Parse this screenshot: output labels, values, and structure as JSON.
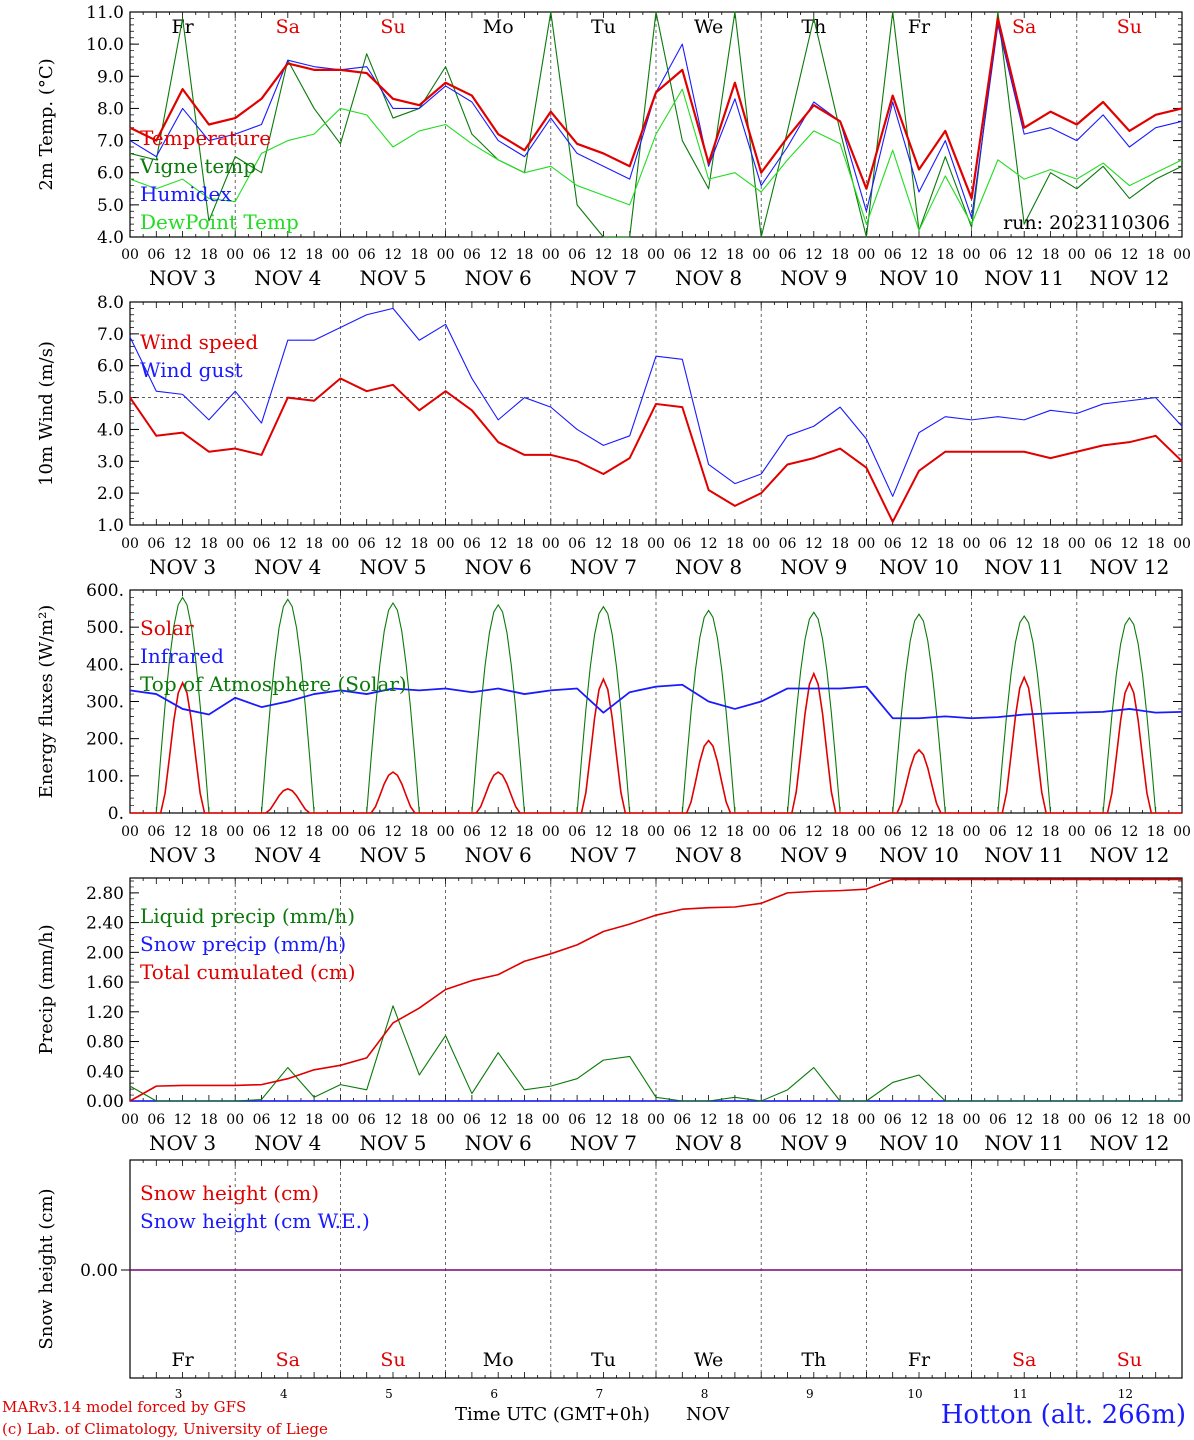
{
  "footer": {
    "model_line": "MARv3.14 model forced by GFS",
    "credit_line": "(c) Lab. of Climatology, University of Liege",
    "time_label": "Time UTC (GMT+0h)",
    "month_label": "NOV",
    "station": "Hotton (alt. 266m)"
  },
  "colors": {
    "red": "#e00000",
    "green": "#0a7a0a",
    "blue": "#1a1aff",
    "lightgreen": "#22dd22",
    "purple": "#7a007a"
  },
  "chart_data": [
    {
      "type": "line",
      "ylabel": "2m Temp. (°C)",
      "ylim": [
        4.0,
        11.0
      ],
      "yticks": [
        "4.0",
        "5.0",
        "6.0",
        "7.0",
        "8.0",
        "9.0",
        "10.0",
        "11.0"
      ],
      "run_label": "run: 2023110306",
      "hour_ticks": [
        "00",
        "06",
        "12",
        "18"
      ],
      "day_labels": [
        "NOV 3",
        "NOV 4",
        "NOV 5",
        "NOV 6",
        "NOV 7",
        "NOV 8",
        "NOV 9",
        "NOV 10",
        "NOV 11",
        "NOV 12"
      ],
      "weekdays": [
        "Fr",
        "Sa",
        "Su",
        "Mo",
        "Tu",
        "We",
        "Th",
        "Fr",
        "Sa",
        "Su"
      ],
      "x_hours": [
        0,
        6,
        12,
        18,
        24,
        30,
        36,
        42,
        48,
        54,
        60,
        66,
        72,
        78,
        84,
        90,
        96,
        102,
        108,
        114,
        120,
        126,
        132,
        138,
        144,
        150,
        156,
        162,
        168,
        174,
        180,
        186,
        192,
        198,
        204,
        210,
        216,
        222,
        228,
        234,
        240
      ],
      "series": [
        {
          "name": "Temperature",
          "color": "red",
          "values": [
            7.4,
            7.0,
            8.6,
            7.5,
            7.7,
            8.3,
            9.4,
            9.2,
            9.2,
            9.1,
            8.3,
            8.1,
            8.8,
            8.4,
            7.2,
            6.7,
            7.9,
            6.9,
            6.6,
            6.2,
            8.5,
            9.2,
            6.3,
            8.8,
            6.0,
            7.1,
            8.1,
            7.6,
            5.5,
            8.4,
            6.1,
            7.3,
            5.2,
            10.8,
            7.4,
            7.9,
            7.5,
            8.2,
            7.3,
            7.8,
            8.0
          ]
        },
        {
          "name": "Vigne temp",
          "color": "green",
          "values": [
            6.6,
            6.4,
            10.8,
            4.5,
            6.5,
            6.0,
            9.5,
            8.0,
            6.9,
            9.7,
            7.7,
            8.0,
            9.3,
            7.2,
            6.4,
            6.0,
            11.0,
            5.0,
            4.0,
            4.0,
            11.0,
            7.0,
            5.5,
            11.0,
            4.0,
            7.3,
            10.8,
            7.3,
            4.0,
            11.0,
            4.2,
            6.5,
            4.3,
            11.0,
            4.4,
            6.0,
            5.5,
            6.2,
            5.2,
            5.8,
            6.2
          ]
        },
        {
          "name": "Humidex",
          "color": "blue",
          "values": [
            7.0,
            6.5,
            8.0,
            7.0,
            7.2,
            7.5,
            9.5,
            9.3,
            9.2,
            9.3,
            8.0,
            8.0,
            8.7,
            8.2,
            7.0,
            6.5,
            7.7,
            6.6,
            6.2,
            5.8,
            8.5,
            10.0,
            6.2,
            8.3,
            5.6,
            6.8,
            8.2,
            7.6,
            4.8,
            8.2,
            5.4,
            7.0,
            4.6,
            10.6,
            7.2,
            7.4,
            7.0,
            7.8,
            6.8,
            7.4,
            7.6
          ]
        },
        {
          "name": "DewPoint Temp",
          "color": "lightgreen",
          "values": [
            5.8,
            5.5,
            5.8,
            5.2,
            5.1,
            6.6,
            7.0,
            7.2,
            8.0,
            7.8,
            6.8,
            7.3,
            7.5,
            6.9,
            6.4,
            6.0,
            6.2,
            5.6,
            5.3,
            5.0,
            7.2,
            8.6,
            5.8,
            6.0,
            5.4,
            6.4,
            7.3,
            6.9,
            4.4,
            6.7,
            4.2,
            5.9,
            4.4,
            6.4,
            5.8,
            6.1,
            5.8,
            6.3,
            5.6,
            6.0,
            6.4
          ]
        }
      ]
    },
    {
      "type": "line",
      "ylabel": "10m Wind (m/s)",
      "ylim": [
        1.0,
        8.0
      ],
      "yticks": [
        "1.0",
        "2.0",
        "3.0",
        "4.0",
        "5.0",
        "6.0",
        "7.0",
        "8.0"
      ],
      "reference_line": 5.0,
      "hour_ticks": [
        "00",
        "06",
        "12",
        "18"
      ],
      "day_labels": [
        "NOV 3",
        "NOV 4",
        "NOV 5",
        "NOV 6",
        "NOV 7",
        "NOV 8",
        "NOV 9",
        "NOV 10",
        "NOV 11",
        "NOV 12"
      ],
      "x_hours": [
        0,
        6,
        12,
        18,
        24,
        30,
        36,
        42,
        48,
        54,
        60,
        66,
        72,
        78,
        84,
        90,
        96,
        102,
        108,
        114,
        120,
        126,
        132,
        138,
        144,
        150,
        156,
        162,
        168,
        174,
        180,
        186,
        192,
        198,
        204,
        210,
        216,
        222,
        228,
        234,
        240
      ],
      "series": [
        {
          "name": "Wind speed",
          "color": "red",
          "values": [
            5.0,
            3.8,
            3.9,
            3.3,
            3.4,
            3.2,
            5.0,
            4.9,
            5.6,
            5.2,
            5.4,
            4.6,
            5.2,
            4.6,
            3.6,
            3.2,
            3.2,
            3.0,
            2.6,
            3.1,
            4.8,
            4.7,
            2.1,
            1.6,
            2.0,
            2.9,
            3.1,
            3.4,
            2.8,
            1.1,
            2.7,
            3.3,
            3.3,
            3.3,
            3.3,
            3.1,
            3.3,
            3.5,
            3.6,
            3.8,
            3.0
          ]
        },
        {
          "name": "Wind gust",
          "color": "blue",
          "values": [
            6.9,
            5.2,
            5.1,
            4.3,
            5.2,
            4.2,
            6.8,
            6.8,
            7.2,
            7.6,
            7.8,
            6.8,
            7.3,
            5.6,
            4.3,
            5.0,
            4.7,
            4.0,
            3.5,
            3.8,
            6.3,
            6.2,
            2.9,
            2.3,
            2.6,
            3.8,
            4.1,
            4.7,
            3.7,
            1.9,
            3.9,
            4.4,
            4.3,
            4.4,
            4.3,
            4.6,
            4.5,
            4.8,
            4.9,
            5.0,
            4.1
          ]
        }
      ]
    },
    {
      "type": "line",
      "ylabel": "Energy fluxes (W/m²)",
      "ylim": [
        0,
        600
      ],
      "yticks": [
        "0.",
        "100.",
        "200.",
        "300.",
        "400.",
        "500.",
        "600."
      ],
      "hour_ticks": [
        "00",
        "06",
        "12",
        "18"
      ],
      "day_labels": [
        "NOV 3",
        "NOV 4",
        "NOV 5",
        "NOV 6",
        "NOV 7",
        "NOV 8",
        "NOV 9",
        "NOV 10",
        "NOV 11",
        "NOV 12"
      ],
      "series": [
        {
          "name": "Solar",
          "color": "red",
          "peaks": [
            350,
            65,
            110,
            110,
            360,
            195,
            375,
            170,
            365,
            350
          ]
        },
        {
          "name": "Infrared",
          "color": "blue",
          "x_hours": [
            0,
            6,
            12,
            18,
            24,
            30,
            36,
            42,
            48,
            54,
            60,
            66,
            72,
            78,
            84,
            90,
            96,
            102,
            108,
            114,
            120,
            126,
            132,
            138,
            144,
            150,
            156,
            162,
            168,
            174,
            180,
            186,
            192,
            198,
            204,
            210,
            216,
            222,
            228,
            234,
            240
          ],
          "values": [
            330,
            320,
            280,
            265,
            310,
            285,
            300,
            320,
            330,
            320,
            335,
            330,
            335,
            325,
            335,
            320,
            330,
            335,
            270,
            325,
            340,
            345,
            300,
            280,
            300,
            335,
            335,
            335,
            340,
            255,
            255,
            260,
            255,
            258,
            265,
            268,
            270,
            272,
            280,
            270,
            272
          ]
        },
        {
          "name": "Top of Atmosphere (Solar)",
          "color": "green",
          "peaks": [
            580,
            575,
            565,
            560,
            555,
            545,
            540,
            535,
            530,
            525
          ]
        }
      ]
    },
    {
      "type": "line",
      "ylabel": "Precip (mm/h)",
      "ylim": [
        0.0,
        3.0
      ],
      "yticks": [
        "0.00",
        "0.40",
        "0.80",
        "1.20",
        "1.60",
        "2.00",
        "2.40",
        "2.80"
      ],
      "hour_ticks": [
        "00",
        "06",
        "12",
        "18"
      ],
      "day_labels": [
        "NOV 3",
        "NOV 4",
        "NOV 5",
        "NOV 6",
        "NOV 7",
        "NOV 8",
        "NOV 9",
        "NOV 10",
        "NOV 11",
        "NOV 12"
      ],
      "x_hours": [
        0,
        6,
        12,
        18,
        24,
        30,
        36,
        42,
        48,
        54,
        60,
        66,
        72,
        78,
        84,
        90,
        96,
        102,
        108,
        114,
        120,
        126,
        132,
        138,
        144,
        150,
        156,
        162,
        168,
        174,
        180,
        186,
        192,
        198,
        204,
        210,
        216,
        222,
        228,
        234,
        240
      ],
      "series": [
        {
          "name": "Liquid precip (mm/h)",
          "color": "green",
          "values": [
            0.2,
            0.0,
            0.0,
            0.0,
            0.0,
            0.02,
            0.45,
            0.05,
            0.22,
            0.15,
            1.28,
            0.35,
            0.88,
            0.1,
            0.65,
            0.15,
            0.2,
            0.3,
            0.55,
            0.6,
            0.05,
            0.0,
            0.0,
            0.05,
            0.0,
            0.15,
            0.45,
            0.0,
            0.0,
            0.25,
            0.35,
            0.0,
            0.0,
            0.0,
            0.0,
            0.0,
            0.0,
            0.0,
            0.0,
            0.0,
            0.0
          ]
        },
        {
          "name": "Snow precip (mm/h)",
          "color": "blue",
          "values": [
            0,
            0,
            0,
            0,
            0,
            0,
            0,
            0,
            0,
            0,
            0,
            0,
            0,
            0,
            0,
            0,
            0,
            0,
            0,
            0,
            0,
            0,
            0,
            0,
            0,
            0,
            0,
            0,
            0,
            0,
            0,
            0,
            0,
            0,
            0,
            0,
            0,
            0,
            0,
            0,
            0
          ]
        },
        {
          "name": "Total cumulated (cm)",
          "color": "red",
          "values": [
            0.0,
            0.2,
            0.21,
            0.21,
            0.21,
            0.22,
            0.3,
            0.42,
            0.48,
            0.58,
            1.05,
            1.25,
            1.5,
            1.62,
            1.7,
            1.88,
            1.98,
            2.1,
            2.28,
            2.38,
            2.5,
            2.58,
            2.6,
            2.61,
            2.66,
            2.8,
            2.82,
            2.83,
            2.85,
            2.98,
            2.98,
            2.98,
            2.98,
            2.98,
            2.98,
            2.98,
            2.98,
            2.98,
            2.98,
            2.98,
            2.98
          ]
        }
      ]
    },
    {
      "type": "line",
      "ylabel": "Snow height (cm)",
      "yticks": [
        "0.00"
      ],
      "weekdays": [
        "Fr",
        "Sa",
        "Su",
        "Mo",
        "Tu",
        "We",
        "Th",
        "Fr",
        "Sa",
        "Su"
      ],
      "day_numbers": [
        "3",
        "4",
        "5",
        "6",
        "7",
        "8",
        "9",
        "10",
        "11",
        "12"
      ],
      "series": [
        {
          "name": "Snow height (cm)",
          "color": "red",
          "values": [
            0,
            0
          ]
        },
        {
          "name": "Snow height (cm W.E.)",
          "color": "blue",
          "values": [
            0,
            0
          ]
        }
      ]
    }
  ]
}
